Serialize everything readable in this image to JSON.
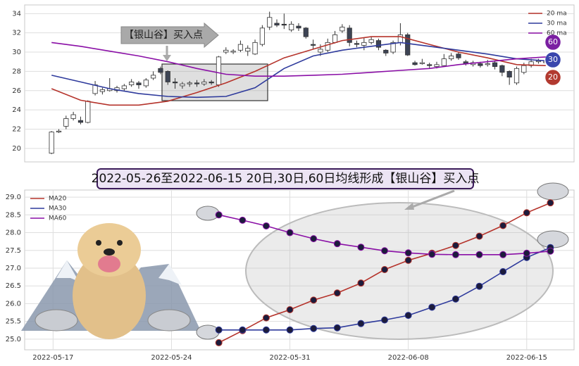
{
  "chart_data": [
    {
      "type": "candlestick",
      "annotation": "【银山谷】买入点",
      "open": [
        19.5,
        21.7,
        22.3,
        23.1,
        22.9,
        22.7,
        25.7,
        25.9,
        26.0,
        26.0,
        26.2,
        26.6,
        26.8,
        26.5,
        27.3,
        28.3,
        28.0,
        26.9,
        26.5,
        26.7,
        26.8,
        26.7,
        26.9,
        26.6,
        30.0,
        30.0,
        30.2,
        30.1,
        29.8,
        30.8,
        32.6,
        33.0,
        32.9,
        32.3,
        32.7,
        32.5,
        30.8,
        30.0,
        30.2,
        31.0,
        32.2,
        32.5,
        30.9,
        30.7,
        31.0,
        31.2,
        30.2,
        30.0,
        31.0,
        31.8,
        28.9,
        28.8,
        28.7,
        28.5,
        28.6,
        29.3,
        29.8,
        29.0,
        28.7,
        28.8,
        28.7,
        28.9,
        28.6,
        28.0,
        26.8,
        27.9,
        28.6,
        29.0,
        28.9
      ],
      "high": [
        21.8,
        22.0,
        23.4,
        23.8,
        23.3,
        25.0,
        27.0,
        26.3,
        27.3,
        26.5,
        26.7,
        27.2,
        27.0,
        27.3,
        28.0,
        28.5,
        28.1,
        27.3,
        26.9,
        27.0,
        27.1,
        27.2,
        27.1,
        29.6,
        30.5,
        30.3,
        31.2,
        30.7,
        31.3,
        32.8,
        34.2,
        33.4,
        34.0,
        33.2,
        33.0,
        32.6,
        31.3,
        30.8,
        31.4,
        32.2,
        32.9,
        32.8,
        31.2,
        31.5,
        31.6,
        31.4,
        30.3,
        31.2,
        33.0,
        32.0,
        29.1,
        29.3,
        28.9,
        29.0,
        29.8,
        29.9,
        30.0,
        29.2,
        29.1,
        29.0,
        29.2,
        29.1,
        28.7,
        28.1,
        28.5,
        28.9,
        29.3,
        29.3,
        29.2
      ],
      "low": [
        19.4,
        21.6,
        22.0,
        22.9,
        22.5,
        22.6,
        25.5,
        25.6,
        25.9,
        25.8,
        26.0,
        26.4,
        26.2,
        26.3,
        27.1,
        27.7,
        26.6,
        26.2,
        26.2,
        26.4,
        26.4,
        26.5,
        26.6,
        26.4,
        29.8,
        29.8,
        30.0,
        29.6,
        29.7,
        30.6,
        32.3,
        32.6,
        32.4,
        32.1,
        32.2,
        31.4,
        30.3,
        29.6,
        30.0,
        30.9,
        32.0,
        30.6,
        30.5,
        30.2,
        30.8,
        30.2,
        29.6,
        29.8,
        30.7,
        29.6,
        28.6,
        28.7,
        28.3,
        28.3,
        28.5,
        29.1,
        29.2,
        28.6,
        28.5,
        28.4,
        28.5,
        28.2,
        27.5,
        26.6,
        26.6,
        27.7,
        28.4,
        28.8,
        28.8
      ],
      "close": [
        21.7,
        21.8,
        23.1,
        23.5,
        22.7,
        24.9,
        26.6,
        26.1,
        26.2,
        26.3,
        26.5,
        26.9,
        26.6,
        27.1,
        27.6,
        27.9,
        26.9,
        26.8,
        26.7,
        26.8,
        26.7,
        26.9,
        26.8,
        29.5,
        30.2,
        30.1,
        30.8,
        30.4,
        31.0,
        32.5,
        33.6,
        32.8,
        32.8,
        32.9,
        32.5,
        31.6,
        30.7,
        30.3,
        31.0,
        31.8,
        32.6,
        31.0,
        30.8,
        31.0,
        31.3,
        30.5,
        29.9,
        31.0,
        31.8,
        29.7,
        28.7,
        28.9,
        28.6,
        28.7,
        29.3,
        29.6,
        29.4,
        28.8,
        28.9,
        28.6,
        28.8,
        28.5,
        27.9,
        27.4,
        28.3,
        28.6,
        29.0,
        29.1,
        29.0
      ],
      "up_color": "#ffffff",
      "down_color": "#3d4455",
      "xlim": [
        -3.7,
        71.9
      ],
      "ylim": [
        18.6,
        34.9
      ],
      "yticks": [
        20,
        22,
        24,
        26,
        28,
        30,
        32,
        34
      ],
      "grid": true,
      "legend": "upper right",
      "series": [
        {
          "name": "20 ma",
          "color": "#b5332b",
          "badge": "20",
          "badge_color": "#b23a30",
          "x": [
            0,
            4,
            8,
            12,
            16,
            20,
            24,
            28,
            32,
            36,
            40,
            44,
            48,
            52,
            56,
            60,
            64,
            68
          ],
          "values": [
            26.2,
            25.0,
            24.5,
            24.5,
            24.9,
            25.8,
            26.8,
            28.0,
            29.4,
            30.3,
            31.2,
            31.6,
            31.6,
            30.8,
            30.0,
            29.4,
            28.7,
            28.6
          ]
        },
        {
          "name": "30 ma",
          "color": "#2e3a9c",
          "badge": "30",
          "badge_color": "#3a46ad",
          "x": [
            0,
            4,
            8,
            12,
            16,
            20,
            24,
            28,
            32,
            36,
            40,
            44,
            48,
            52,
            56,
            60,
            64,
            68
          ],
          "values": [
            27.6,
            26.9,
            26.2,
            25.7,
            25.4,
            25.3,
            25.4,
            26.3,
            28.3,
            29.6,
            30.2,
            30.6,
            31.0,
            30.6,
            30.2,
            29.8,
            29.3,
            29.1
          ]
        },
        {
          "name": "60 ma",
          "color": "#8a0fa6",
          "badge": "60",
          "badge_color": "#7b1fa2",
          "x": [
            0,
            4,
            8,
            12,
            16,
            20,
            24,
            28,
            32,
            36,
            40,
            44,
            48,
            52,
            56,
            60,
            64,
            68
          ],
          "values": [
            31.0,
            30.6,
            30.1,
            29.6,
            29.0,
            28.3,
            27.7,
            27.5,
            27.5,
            27.6,
            27.7,
            27.9,
            28.1,
            28.3,
            28.7,
            29.0,
            29.3,
            29.5
          ]
        }
      ]
    },
    {
      "type": "line",
      "title": "2022-05-26至2022-06-15 20日,30日,60日均线形成【银山谷】买入点",
      "x": [
        7,
        8,
        9,
        10,
        11,
        12,
        13,
        14,
        15,
        16,
        17,
        18,
        19,
        20,
        21
      ],
      "xlim": [
        -1.2,
        22
      ],
      "xticks": [
        {
          "value": 0,
          "label": "2022-05-17"
        },
        {
          "value": 5,
          "label": "2022-05-24"
        },
        {
          "value": 10,
          "label": "2022-05-31"
        },
        {
          "value": 15,
          "label": "2022-06-08"
        },
        {
          "value": 20,
          "label": "2022-06-15"
        }
      ],
      "ylim": [
        24.7,
        29.2
      ],
      "yticks": [
        {
          "value": 25,
          "label": "25.0"
        },
        25.5,
        {
          "value": 26,
          "label": "26.0"
        },
        26.5,
        {
          "value": 27,
          "label": "27.0"
        },
        27.5,
        {
          "value": 28,
          "label": "28.0"
        },
        28.5,
        {
          "value": 29,
          "label": "29.0"
        }
      ],
      "grid": true,
      "legend": "upper left",
      "marker_color": "#1c1c3c",
      "series": [
        {
          "name": "MA20",
          "color": "#b5332b",
          "values": [
            24.9,
            25.24,
            25.6,
            25.83,
            26.1,
            26.3,
            26.58,
            26.96,
            27.22,
            27.42,
            27.64,
            27.9,
            28.2,
            28.56,
            28.84
          ]
        },
        {
          "name": "MA30",
          "color": "#2e3a9c",
          "values": [
            25.26,
            25.26,
            25.26,
            25.26,
            25.3,
            25.32,
            25.44,
            25.54,
            25.67,
            25.9,
            26.13,
            26.49,
            26.9,
            27.3,
            27.58
          ]
        },
        {
          "name": "MA60",
          "color": "#8a0fa6",
          "values": [
            28.5,
            28.35,
            28.19,
            28.0,
            27.83,
            27.69,
            27.59,
            27.49,
            27.43,
            27.39,
            27.38,
            27.38,
            27.38,
            27.42,
            27.48
          ]
        }
      ]
    }
  ]
}
